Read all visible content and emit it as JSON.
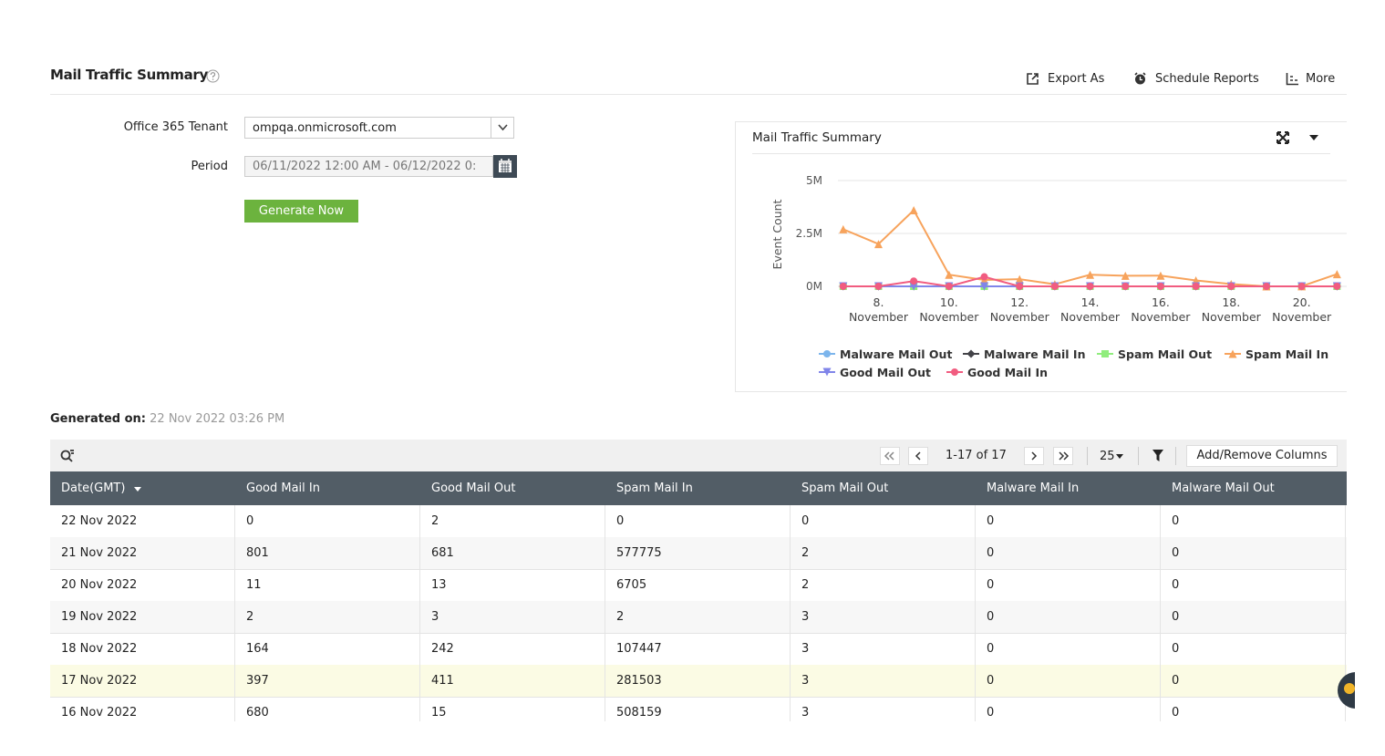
{
  "header": {
    "title": "Mail Traffic Summary",
    "actions": [
      "Export As",
      "Schedule Reports",
      "More"
    ]
  },
  "form": {
    "tenant_label": "Office 365 Tenant",
    "tenant_value": "ompqa.onmicrosoft.com",
    "period_label": "Period",
    "period_value": "06/11/2022 12:00 AM - 06/12/2022 0:",
    "button": "Generate Now"
  },
  "chart_data": {
    "type": "line",
    "title": "Mail Traffic Summary",
    "y_label": "Event Count",
    "x": [
      7,
      8,
      9,
      10,
      11,
      12,
      13,
      14,
      15,
      16,
      17,
      18,
      19,
      20,
      21
    ],
    "xlim": [
      6.85,
      21.25
    ],
    "xticks": [
      {
        "value": 8,
        "label": "8. November"
      },
      {
        "value": 10,
        "label": "10. November"
      },
      {
        "value": 12,
        "label": "12. November"
      },
      {
        "value": 14,
        "label": "14. November"
      },
      {
        "value": 16,
        "label": "16. November"
      },
      {
        "value": 18,
        "label": "18. November"
      },
      {
        "value": 20,
        "label": "20. November"
      }
    ],
    "ylim": [
      0,
      5000000
    ],
    "yticks": [
      {
        "value": 0,
        "label": "0M"
      },
      {
        "value": 2500000,
        "label": "2.5M"
      },
      {
        "value": 5000000,
        "label": "5M"
      }
    ],
    "grid": true,
    "series": [
      {
        "name": "Malware Mail Out",
        "color": "#7cb5ec",
        "marker": "circle",
        "values": [
          0,
          0,
          0,
          0,
          0,
          0,
          0,
          0,
          0,
          0,
          0,
          0,
          0,
          0,
          0
        ]
      },
      {
        "name": "Malware Mail In",
        "color": "#434348",
        "marker": "diamond",
        "values": [
          0,
          0,
          0,
          0,
          0,
          0,
          0,
          0,
          0,
          0,
          0,
          0,
          0,
          0,
          0
        ]
      },
      {
        "name": "Spam Mail Out",
        "color": "#90ed7d",
        "marker": "square",
        "values": [
          0,
          0,
          0,
          0,
          0,
          0,
          0,
          0,
          0,
          3,
          3,
          3,
          3,
          2,
          2
        ]
      },
      {
        "name": "Spam Mail In",
        "color": "#f7a35c",
        "marker": "triangle",
        "values": [
          2700000,
          2000000,
          3600000,
          550000,
          300000,
          340000,
          100000,
          550000,
          500000,
          508159,
          281503,
          107447,
          2,
          6705,
          577775
        ]
      },
      {
        "name": "Good Mail Out",
        "color": "#8085e9",
        "marker": "triangle-down",
        "values": [
          0,
          0,
          0,
          0,
          0,
          0,
          0,
          0,
          0,
          15,
          411,
          242,
          3,
          13,
          681
        ]
      },
      {
        "name": "Good Mail In",
        "color": "#f15c80",
        "marker": "circle",
        "values": [
          0,
          0,
          250000,
          0,
          450000,
          0,
          0,
          0,
          0,
          680,
          397,
          164,
          2,
          11,
          801
        ]
      }
    ]
  },
  "generated": {
    "label": "Generated on:",
    "value": "22 Nov 2022 03:26 PM"
  },
  "toolbar": {
    "pages": "1-17 of 17",
    "page_size": "25",
    "columns_button": "Add/Remove Columns"
  },
  "table": {
    "columns": [
      "Date(GMT)",
      "Good Mail In",
      "Good Mail Out",
      "Spam Mail In",
      "Spam Mail Out",
      "Malware Mail In",
      "Malware Mail Out"
    ],
    "rows": [
      [
        "22 Nov 2022",
        "0",
        "2",
        "0",
        "0",
        "0",
        "0"
      ],
      [
        "21 Nov 2022",
        "801",
        "681",
        "577775",
        "2",
        "0",
        "0"
      ],
      [
        "20 Nov 2022",
        "11",
        "13",
        "6705",
        "2",
        "0",
        "0"
      ],
      [
        "19 Nov 2022",
        "2",
        "3",
        "2",
        "3",
        "0",
        "0"
      ],
      [
        "18 Nov 2022",
        "164",
        "242",
        "107447",
        "3",
        "0",
        "0"
      ],
      [
        "17 Nov 2022",
        "397",
        "411",
        "281503",
        "3",
        "0",
        "0"
      ],
      [
        "16 Nov 2022",
        "680",
        "15",
        "508159",
        "3",
        "0",
        "0"
      ]
    ]
  }
}
